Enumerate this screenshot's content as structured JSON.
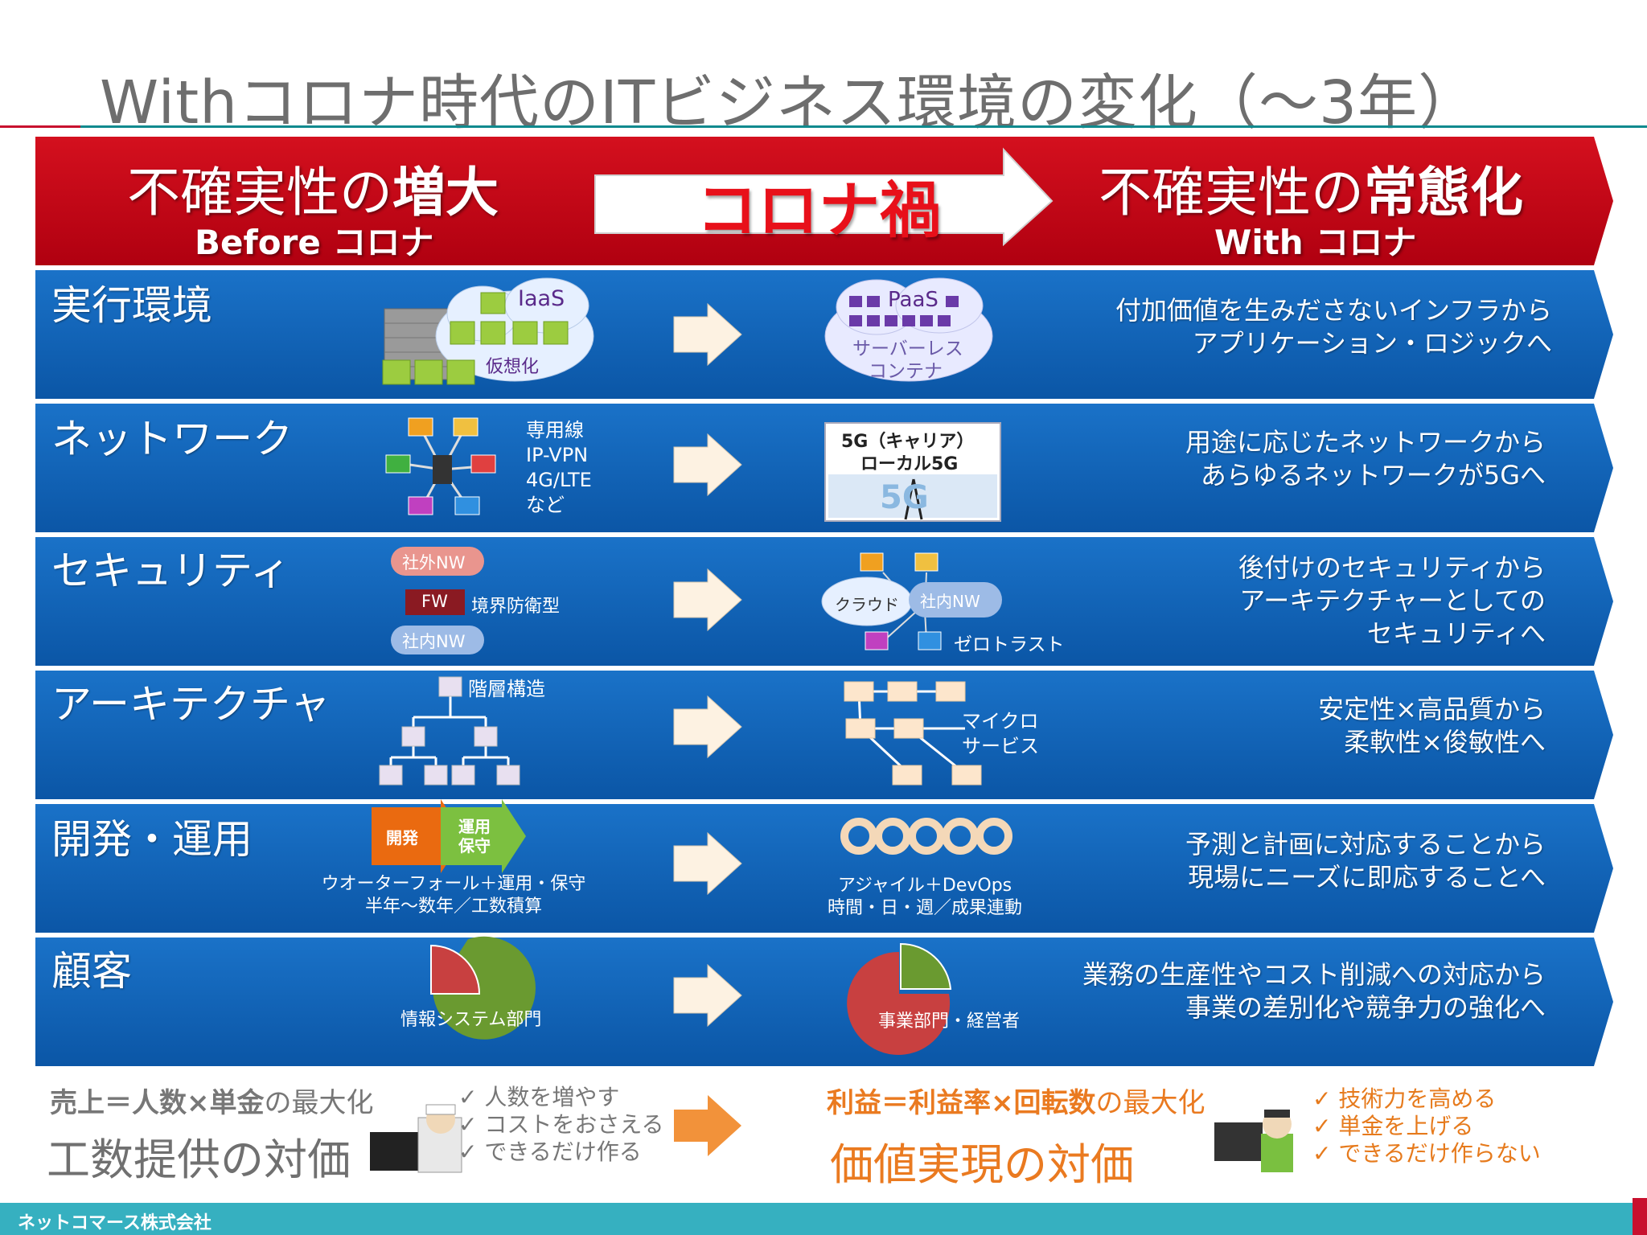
{
  "title": "Withコロナ時代のITビジネス環境の変化（〜3年）",
  "header": {
    "left_main": "不確実性の",
    "left_bold": "増大",
    "left_sub": "Before コロナ",
    "center": "コロナ禍",
    "right_main": "不確実性の",
    "right_bold": "常態化",
    "right_sub": "With コロナ"
  },
  "rows": [
    {
      "label": "実行環境",
      "before": {
        "cloud_top": "IaaS",
        "cloud_bottom": "仮想化"
      },
      "after": {
        "cloud_top": "PaaS",
        "line1": "サーバーレス",
        "line2": "コンテナ"
      },
      "desc": [
        "付加価値を生みださないインフラから",
        "アプリケーション・ロジックへ"
      ]
    },
    {
      "label": "ネットワーク",
      "before": {
        "items": [
          "専用線",
          "IP-VPN",
          "4G/LTE",
          "など"
        ]
      },
      "after": {
        "line1": "5G（キャリア）",
        "line2": "ローカル5G",
        "logo": "5G"
      },
      "desc": [
        "用途に応じたネットワークから",
        "あらゆるネットワークが5Gへ"
      ]
    },
    {
      "label": "セキュリティ",
      "before": {
        "outer": "社外NW",
        "fw": "FW",
        "fw_label": "境界防衛型",
        "inner": "社内NW"
      },
      "after": {
        "cloud": "クラウド",
        "inner": "社内NW",
        "zero": "ゼロトラスト"
      },
      "desc": [
        "後付けのセキュリティから",
        "アーキテクチャーとしての",
        "セキュリティへ"
      ]
    },
    {
      "label": "アーキテクチャ",
      "before": {
        "label": "階層構造"
      },
      "after": {
        "line1": "マイクロ",
        "line2": "サービス"
      },
      "desc": [
        "安定性×高品質から",
        "柔軟性×俊敏性へ"
      ]
    },
    {
      "label": "開発・運用",
      "before": {
        "dev": "開発",
        "ops1": "運用",
        "ops2": "保守",
        "line1": "ウオーターフォール＋運用・保守",
        "line2": "半年〜数年／工数積算"
      },
      "after": {
        "line1": "アジャイル＋DevOps",
        "line2": "時間・日・週／成果連動"
      },
      "desc": [
        "予測と計画に対応することから",
        "現場にニーズに即応することへ"
      ]
    },
    {
      "label": "顧客",
      "before": {
        "label": "情報システム部門"
      },
      "after": {
        "label": "事業部門・経営者"
      },
      "desc": [
        "業務の生産性やコスト削減への対応から",
        "事業の差別化や競争力の強化へ"
      ]
    }
  ],
  "bottom": {
    "left_formula_bold": "売上＝人数×単金",
    "left_formula_rest": "の最大化",
    "left_value": "工数提供の対価",
    "left_checks": [
      "✓ 人数を増やす",
      "✓ コストをおさえる",
      "✓ できるだけ作る"
    ],
    "right_formula_bold": "利益＝利益率×回転数",
    "right_formula_rest": "の最大化",
    "right_value": "価値実現の対価",
    "right_checks": [
      "✓ 技術力を高める",
      "✓ 単金を上げる",
      "✓ できるだけ作らない"
    ]
  },
  "footer": {
    "company": "ネットコマース株式会社"
  },
  "colors": {
    "header_red": "#c00010",
    "row_blue": "#0e62b8",
    "accent_orange": "#ea7a20",
    "teal": "#36b0c0"
  }
}
